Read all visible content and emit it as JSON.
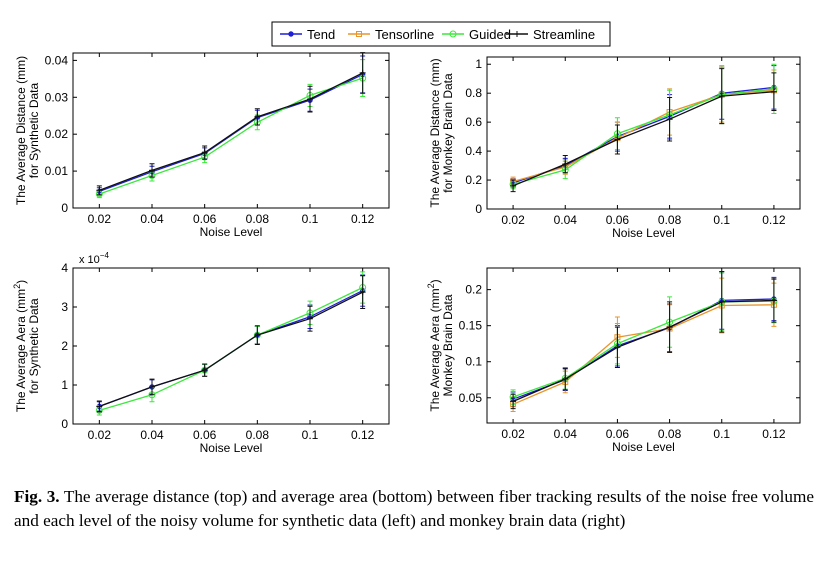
{
  "legend": {
    "items": [
      {
        "name": "Tend",
        "color": "#1f1fd6",
        "marker": "dot"
      },
      {
        "name": "Tensorline",
        "color": "#e8952c",
        "marker": "square"
      },
      {
        "name": "Guided",
        "color": "#3ce83c",
        "marker": "circle"
      },
      {
        "name": "Streamline",
        "color": "#101010",
        "marker": "plus"
      }
    ]
  },
  "caption": {
    "label": "Fig. 3.",
    "text": "The average distance (top) and average area (bottom) between fiber tracking results of the noise free volume and each level of the noisy volume for synthetic data (left) and monkey brain data (right)"
  },
  "chart_data": [
    {
      "id": "distance-synthetic",
      "type": "line",
      "ylabel_line1": "The Average Distance (mm)",
      "ylabel_line2": "for Synthetic Data",
      "xlabel": "Noise Level",
      "x": [
        0.02,
        0.04,
        0.06,
        0.08,
        0.1,
        0.12
      ],
      "x_ticks": [
        "0.02",
        "0.04",
        "0.06",
        "0.08",
        "0.1",
        "0.12"
      ],
      "xlim": [
        0.01,
        0.13
      ],
      "ylim": [
        0,
        0.042
      ],
      "y_ticks": [
        0,
        0.01,
        0.02,
        0.03,
        0.04
      ],
      "y_tick_labels": [
        "0",
        "0.01",
        "0.02",
        "0.03",
        "0.04"
      ],
      "series": [
        {
          "name": "Tend",
          "values": [
            0.0045,
            0.0098,
            0.0148,
            0.0245,
            0.0292,
            0.0362
          ],
          "errors": [
            0.001,
            0.0015,
            0.0015,
            0.002,
            0.003,
            0.005
          ]
        },
        {
          "name": "Guided",
          "values": [
            0.0038,
            0.0088,
            0.0138,
            0.0232,
            0.0305,
            0.0352
          ],
          "errors": [
            0.001,
            0.0015,
            0.0015,
            0.002,
            0.003,
            0.005
          ]
        },
        {
          "name": "Streamline",
          "values": [
            0.0048,
            0.0102,
            0.015,
            0.0247,
            0.0295,
            0.0366
          ],
          "errors": [
            0.0012,
            0.0018,
            0.0018,
            0.0022,
            0.0035,
            0.0055
          ]
        }
      ]
    },
    {
      "id": "distance-monkey",
      "type": "line",
      "ylabel_line1": "The Average Distance (mm)",
      "ylabel_line2": "for Monkey Brain Data",
      "xlabel": "Noise Level",
      "x": [
        0.02,
        0.04,
        0.06,
        0.08,
        0.1,
        0.12
      ],
      "x_ticks": [
        "0.02",
        "0.04",
        "0.06",
        "0.08",
        "0.1",
        "0.12"
      ],
      "xlim": [
        0.01,
        0.13
      ],
      "ylim": [
        0,
        1.05
      ],
      "y_ticks": [
        0,
        0.2,
        0.4,
        0.6,
        0.8,
        1
      ],
      "y_tick_labels": [
        "0",
        "0.2",
        "0.4",
        "0.6",
        "0.8",
        "1"
      ],
      "series": [
        {
          "name": "Tend",
          "values": [
            0.18,
            0.3,
            0.5,
            0.64,
            0.8,
            0.84
          ],
          "errors": [
            0.03,
            0.05,
            0.1,
            0.15,
            0.18,
            0.15
          ]
        },
        {
          "name": "Tensorline",
          "values": [
            0.19,
            0.29,
            0.49,
            0.67,
            0.79,
            0.82
          ],
          "errors": [
            0.03,
            0.05,
            0.11,
            0.16,
            0.19,
            0.14
          ]
        },
        {
          "name": "Guided",
          "values": [
            0.17,
            0.27,
            0.52,
            0.65,
            0.79,
            0.83
          ],
          "errors": [
            0.03,
            0.06,
            0.11,
            0.17,
            0.2,
            0.17
          ]
        },
        {
          "name": "Streamline",
          "values": [
            0.16,
            0.31,
            0.48,
            0.62,
            0.78,
            0.81
          ],
          "errors": [
            0.04,
            0.06,
            0.1,
            0.15,
            0.19,
            0.13
          ]
        }
      ]
    },
    {
      "id": "area-synthetic",
      "type": "line",
      "ylabel_line1": "The Average Aera (mm",
      "ylabel_line1_sup": "2",
      "ylabel_line1_end": ")",
      "ylabel_line2": "for Synthetic Data",
      "xlabel": "Noise Level",
      "y_multiplier": "x 10",
      "y_multiplier_exp": "−4",
      "x": [
        0.02,
        0.04,
        0.06,
        0.08,
        0.1,
        0.12
      ],
      "x_ticks": [
        "0.02",
        "0.04",
        "0.06",
        "0.08",
        "0.1",
        "0.12"
      ],
      "xlim": [
        0.01,
        0.13
      ],
      "ylim": [
        0,
        4
      ],
      "y_ticks": [
        0,
        1,
        2,
        3,
        4
      ],
      "y_tick_labels": [
        "0",
        "1",
        "2",
        "3",
        "4"
      ],
      "series": [
        {
          "name": "Tend",
          "values": [
            0.45,
            0.95,
            1.38,
            2.28,
            2.75,
            3.42
          ],
          "errors": [
            0.12,
            0.18,
            0.15,
            0.22,
            0.3,
            0.4
          ]
        },
        {
          "name": "Guided",
          "values": [
            0.35,
            0.75,
            1.38,
            2.28,
            2.85,
            3.5
          ],
          "errors": [
            0.12,
            0.18,
            0.15,
            0.22,
            0.3,
            0.4
          ]
        },
        {
          "name": "Streamline",
          "values": [
            0.45,
            0.95,
            1.38,
            2.28,
            2.7,
            3.38
          ],
          "errors": [
            0.14,
            0.2,
            0.16,
            0.24,
            0.32,
            0.42
          ]
        }
      ]
    },
    {
      "id": "area-monkey",
      "type": "line",
      "ylabel_line1": "The Average Aera (mm",
      "ylabel_line1_sup": "2",
      "ylabel_line1_end": ")",
      "ylabel_line2": "Monkey Brain Data",
      "xlabel": "Noise Level",
      "x": [
        0.02,
        0.04,
        0.06,
        0.08,
        0.1,
        0.12
      ],
      "x_ticks": [
        "0.02",
        "0.04",
        "0.06",
        "0.08",
        "0.1",
        "0.12"
      ],
      "xlim": [
        0.01,
        0.13
      ],
      "ylim": [
        0.015,
        0.23
      ],
      "y_ticks": [
        0.05,
        0.1,
        0.15,
        0.2
      ],
      "y_tick_labels": [
        "0.05",
        "0.1",
        "0.15",
        "0.2"
      ],
      "series": [
        {
          "name": "Tend",
          "values": [
            0.048,
            0.075,
            0.122,
            0.147,
            0.185,
            0.187
          ],
          "errors": [
            0.01,
            0.015,
            0.028,
            0.033,
            0.04,
            0.03
          ]
        },
        {
          "name": "Tensorline",
          "values": [
            0.041,
            0.072,
            0.134,
            0.146,
            0.178,
            0.179
          ],
          "errors": [
            0.01,
            0.015,
            0.028,
            0.033,
            0.038,
            0.03
          ]
        },
        {
          "name": "Guided",
          "values": [
            0.051,
            0.077,
            0.125,
            0.155,
            0.183,
            0.184
          ],
          "errors": [
            0.01,
            0.015,
            0.028,
            0.035,
            0.04,
            0.03
          ]
        },
        {
          "name": "Streamline",
          "values": [
            0.045,
            0.076,
            0.12,
            0.148,
            0.183,
            0.185
          ],
          "errors": [
            0.01,
            0.015,
            0.028,
            0.035,
            0.042,
            0.03
          ]
        }
      ]
    }
  ]
}
